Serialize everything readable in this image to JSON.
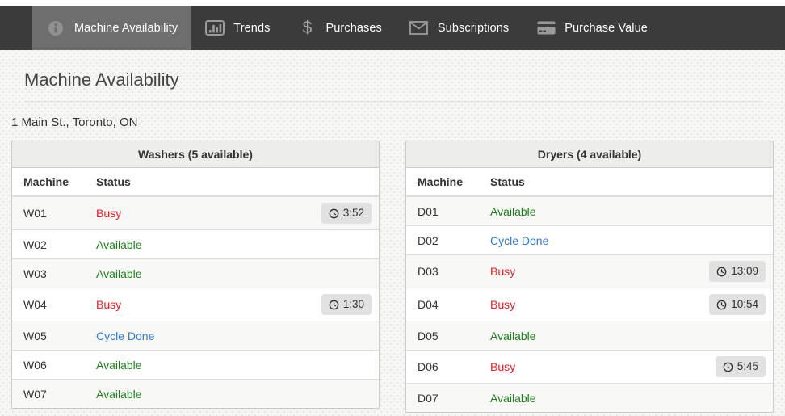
{
  "nav": {
    "tabs": [
      {
        "label": "Machine Availability",
        "icon": "info-icon",
        "active": true
      },
      {
        "label": "Trends",
        "icon": "bar-chart-icon",
        "active": false
      },
      {
        "label": "Purchases",
        "icon": "dollar-icon",
        "active": false
      },
      {
        "label": "Subscriptions",
        "icon": "envelope-icon",
        "active": false
      },
      {
        "label": "Purchase Value",
        "icon": "credit-card-icon",
        "active": false
      }
    ]
  },
  "page": {
    "title": "Machine Availability",
    "address": "1 Main St., Toronto, ON"
  },
  "tables": [
    {
      "title": "Washers (5 available)",
      "columns": [
        "Machine",
        "Status"
      ],
      "rows": [
        {
          "machine": "W01",
          "status": "Busy",
          "timer": "3:52"
        },
        {
          "machine": "W02",
          "status": "Available"
        },
        {
          "machine": "W03",
          "status": "Available"
        },
        {
          "machine": "W04",
          "status": "Busy",
          "timer": "1:30"
        },
        {
          "machine": "W05",
          "status": "Cycle Done"
        },
        {
          "machine": "W06",
          "status": "Available"
        },
        {
          "machine": "W07",
          "status": "Available"
        }
      ]
    },
    {
      "title": "Dryers (4 available)",
      "columns": [
        "Machine",
        "Status"
      ],
      "rows": [
        {
          "machine": "D01",
          "status": "Available"
        },
        {
          "machine": "D02",
          "status": "Cycle Done"
        },
        {
          "machine": "D03",
          "status": "Busy",
          "timer": "13:09"
        },
        {
          "machine": "D04",
          "status": "Busy",
          "timer": "10:54"
        },
        {
          "machine": "D05",
          "status": "Available"
        },
        {
          "machine": "D06",
          "status": "Busy",
          "timer": "5:45"
        },
        {
          "machine": "D07",
          "status": "Available"
        }
      ]
    }
  ],
  "colors": {
    "nav_background": "#3b3b3b",
    "nav_active_background": "#6e6e6e",
    "status_busy": "#ed1c24",
    "status_available": "#1e7d1e",
    "status_cycle_done": "#2f7bd9",
    "badge_background": "#e1e1e1"
  }
}
